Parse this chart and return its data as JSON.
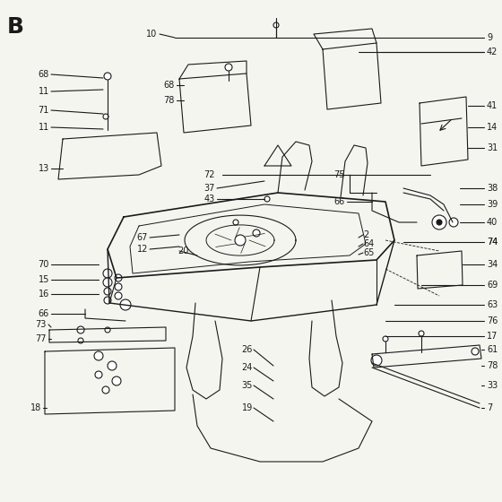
{
  "title": "B",
  "bg_color": "#f5f5f0",
  "line_color": "#1a1a1a",
  "text_color": "#1a1a1a",
  "figsize": [
    5.6,
    5.6
  ],
  "dpi": 100
}
